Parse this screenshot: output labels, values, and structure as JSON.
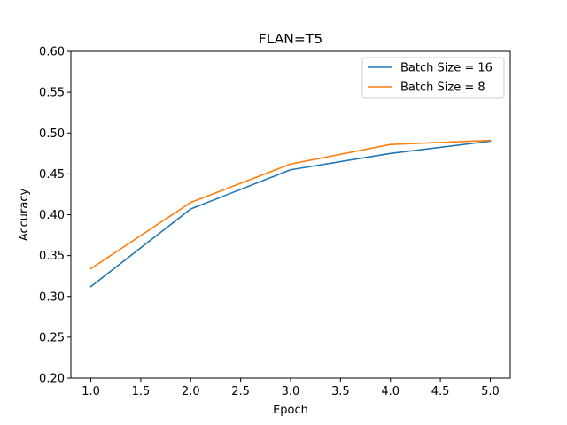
{
  "chart_data": {
    "type": "line",
    "title": "FLAN=T5",
    "xlabel": "Epoch",
    "ylabel": "Accuracy",
    "x": [
      1.0,
      2.0,
      3.0,
      4.0,
      5.0
    ],
    "xlim": [
      0.8,
      5.2
    ],
    "ylim": [
      0.2,
      0.6
    ],
    "xticks": [
      "1.0",
      "1.5",
      "2.0",
      "2.5",
      "3.0",
      "3.5",
      "4.0",
      "4.5",
      "5.0"
    ],
    "xtick_values": [
      1.0,
      1.5,
      2.0,
      2.5,
      3.0,
      3.5,
      4.0,
      4.5,
      5.0
    ],
    "yticks": [
      "0.20",
      "0.25",
      "0.30",
      "0.35",
      "0.40",
      "0.45",
      "0.50",
      "0.55",
      "0.60"
    ],
    "ytick_values": [
      0.2,
      0.25,
      0.3,
      0.35,
      0.4,
      0.45,
      0.5,
      0.55,
      0.6
    ],
    "grid": false,
    "legend_position": "top-right",
    "series": [
      {
        "name": "Batch Size = 16",
        "color": "#1f77b4",
        "values": [
          0.312,
          0.407,
          0.455,
          0.475,
          0.49
        ]
      },
      {
        "name": "Batch Size = 8",
        "color": "#ff7f0e",
        "values": [
          0.334,
          0.415,
          0.462,
          0.486,
          0.491
        ]
      }
    ]
  }
}
